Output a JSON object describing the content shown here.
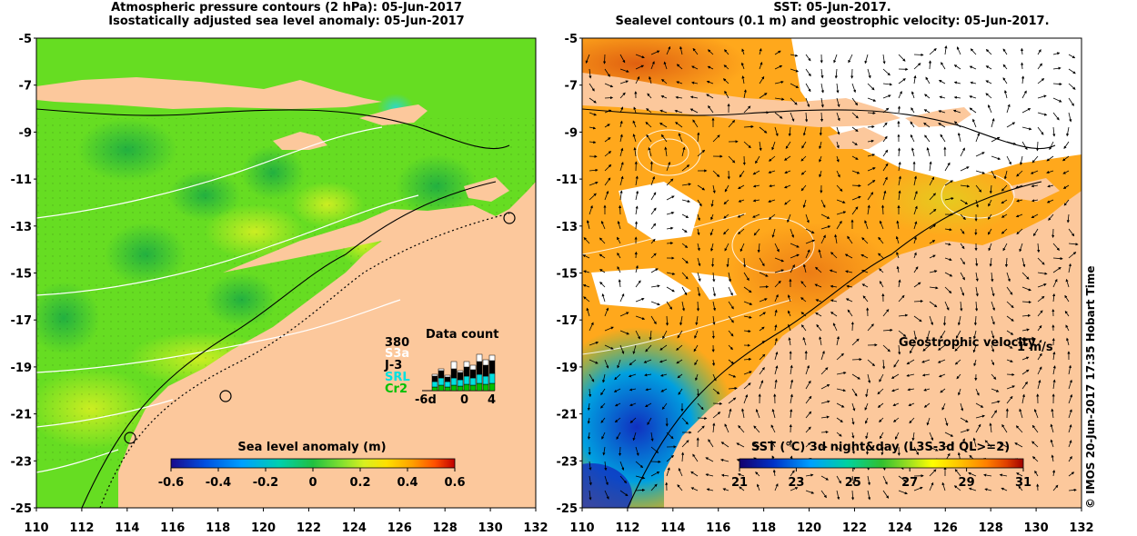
{
  "left_panel": {
    "title_line1": "Atmospheric pressure contours (2 hPa): 05-Jun-2017",
    "title_line2": "Isostatically adjusted sea level anomaly: 05-Jun-2017",
    "colorbar": {
      "label": "Sea level anomaly (m)",
      "ticks": [
        "-0.6",
        "-0.4",
        "-0.2",
        "0",
        "0.2",
        "0.4",
        "0.6"
      ],
      "colors": [
        "#1a0a8c",
        "#0050e0",
        "#00a0ff",
        "#00d0b0",
        "#20c040",
        "#80e030",
        "#d8f020",
        "#ffe000",
        "#ffa000",
        "#ff5000",
        "#c00000"
      ]
    },
    "data_count": {
      "title": "Data count",
      "max": "380",
      "legend": [
        {
          "name": "S3a",
          "color": "#ffffff"
        },
        {
          "name": "J-3",
          "color": "#000000"
        },
        {
          "name": "SRL",
          "color": "#00e0e0"
        },
        {
          "name": "Cr2",
          "color": "#00c000"
        }
      ],
      "x_ticks": [
        "-6d",
        "0",
        "4"
      ]
    }
  },
  "right_panel": {
    "title_line1": "SST: 05-Jun-2017.",
    "title_line2": "Sealevel contours (0.1 m) and geostrophic velocity: 05-Jun-2017.",
    "velocity_label": "Geostrophic velocity",
    "velocity_scale": "1 m/s",
    "colorbar": {
      "label": "SST (°C) 3d night&day (L3S-3d QL>=2)",
      "ticks": [
        "21",
        "23",
        "25",
        "27",
        "29",
        "31"
      ],
      "colors": [
        "#14006e",
        "#0032c8",
        "#00a0ff",
        "#00d2a0",
        "#30c030",
        "#a0e020",
        "#ffff00",
        "#ffc000",
        "#ff8000",
        "#e04000",
        "#a00000"
      ]
    }
  },
  "axes": {
    "x_ticks": [
      "110",
      "112",
      "114",
      "116",
      "118",
      "120",
      "122",
      "124",
      "126",
      "128",
      "130",
      "132"
    ],
    "y_ticks": [
      "-5",
      "-7",
      "-9",
      "-11",
      "-13",
      "-15",
      "-17",
      "-19",
      "-21",
      "-23",
      "-25"
    ],
    "lon_range": [
      110,
      132
    ],
    "lat_range": [
      -25,
      -5
    ]
  },
  "credit": "© IMOS 20-Jun-2017 17:35 Hobart Time",
  "colors": {
    "land": "#fcc89c",
    "sea_green": "#66dd22",
    "sst_orange": "#ffa81c"
  }
}
